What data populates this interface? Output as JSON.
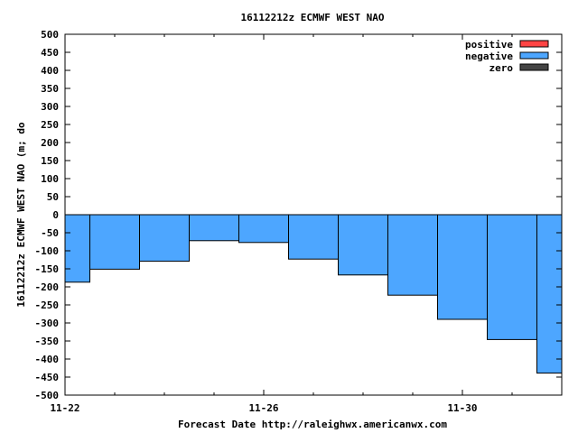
{
  "chart_data": {
    "type": "bar",
    "title": "16112212z ECMWF WEST NAO",
    "xlabel": "Forecast Date http://raleighwx.americanwx.com",
    "ylabel": "16112212z ECMWF WEST NAO (m; do",
    "ylim": [
      -500,
      500
    ],
    "yticks": [
      500,
      450,
      400,
      350,
      300,
      250,
      200,
      150,
      100,
      50,
      0,
      -50,
      -100,
      -150,
      -200,
      -250,
      -300,
      -350,
      -400,
      -450,
      -500
    ],
    "xlim": [
      22,
      32
    ],
    "xticks": [
      {
        "x": 22,
        "label": "11-22"
      },
      {
        "x": 26,
        "label": "11-26"
      },
      {
        "x": 30,
        "label": "11-30"
      }
    ],
    "minor_xticks": [
      23,
      24,
      25,
      27,
      28,
      29,
      31
    ],
    "bars": [
      {
        "x0": 22.0,
        "x1": 22.5,
        "value": -187
      },
      {
        "x0": 22.5,
        "x1": 23.5,
        "value": -151
      },
      {
        "x0": 23.5,
        "x1": 24.5,
        "value": -129
      },
      {
        "x0": 24.5,
        "x1": 25.5,
        "value": -72
      },
      {
        "x0": 25.5,
        "x1": 26.5,
        "value": -77
      },
      {
        "x0": 26.5,
        "x1": 27.5,
        "value": -123
      },
      {
        "x0": 27.5,
        "x1": 28.5,
        "value": -167
      },
      {
        "x0": 28.5,
        "x1": 29.5,
        "value": -223
      },
      {
        "x0": 29.5,
        "x1": 30.5,
        "value": -290
      },
      {
        "x0": 30.5,
        "x1": 31.5,
        "value": -346
      },
      {
        "x0": 31.5,
        "x1": 32.0,
        "value": -439
      }
    ],
    "legend": {
      "placement": "top-right",
      "entries": [
        {
          "label": "positive",
          "color": "#ff4444"
        },
        {
          "label": "negative",
          "color": "#4da6ff"
        },
        {
          "label": "zero",
          "color": "#444444"
        }
      ]
    },
    "colors": {
      "positive": "#ff4444",
      "negative": "#4da6ff",
      "zero": "#444444",
      "bar_outline": "#000000"
    },
    "grid": false
  }
}
